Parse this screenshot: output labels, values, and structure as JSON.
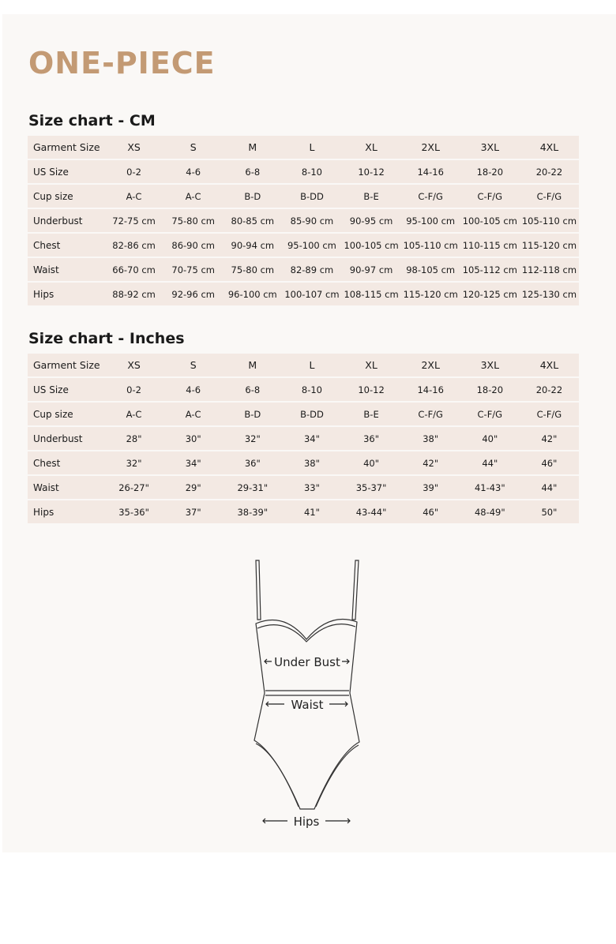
{
  "title": "ONE-PIECE",
  "tables": [
    {
      "heading": "Size chart - CM",
      "header": [
        "Garment Size",
        "XS",
        "S",
        "M",
        "L",
        "XL",
        "2XL",
        "3XL",
        "4XL"
      ],
      "rows": [
        [
          "US Size",
          "0-2",
          "4-6",
          "6-8",
          "8-10",
          "10-12",
          "14-16",
          "18-20",
          "20-22"
        ],
        [
          "Cup size",
          "A-C",
          "A-C",
          "B-D",
          "B-DD",
          "B-E",
          "C-F/G",
          "C-F/G",
          "C-F/G"
        ],
        [
          "Underbust",
          "72-75 cm",
          "75-80 cm",
          "80-85 cm",
          "85-90 cm",
          "90-95 cm",
          "95-100 cm",
          "100-105 cm",
          "105-110 cm"
        ],
        [
          "Chest",
          "82-86 cm",
          "86-90 cm",
          "90-94 cm",
          "95-100 cm",
          "100-105 cm",
          "105-110 cm",
          "110-115 cm",
          "115-120 cm"
        ],
        [
          "Waist",
          "66-70 cm",
          "70-75 cm",
          "75-80 cm",
          "82-89 cm",
          "90-97 cm",
          "98-105 cm",
          "105-112 cm",
          "112-118 cm"
        ],
        [
          "Hips",
          "88-92 cm",
          "92-96 cm",
          "96-100 cm",
          "100-107 cm",
          "108-115 cm",
          "115-120 cm",
          "120-125 cm",
          "125-130 cm"
        ]
      ]
    },
    {
      "heading": "Size chart - Inches",
      "header": [
        "Garment Size",
        "XS",
        "S",
        "M",
        "L",
        "XL",
        "2XL",
        "3XL",
        "4XL"
      ],
      "rows": [
        [
          "US Size",
          "0-2",
          "4-6",
          "6-8",
          "8-10",
          "10-12",
          "14-16",
          "18-20",
          "20-22"
        ],
        [
          "Cup size",
          "A-C",
          "A-C",
          "B-D",
          "B-DD",
          "B-E",
          "C-F/G",
          "C-F/G",
          "C-F/G"
        ],
        [
          "Underbust",
          "28\"",
          "30\"",
          "32\"",
          "34\"",
          "36\"",
          "38\"",
          "40\"",
          "42\""
        ],
        [
          "Chest",
          "32\"",
          "34\"",
          "36\"",
          "38\"",
          "40\"",
          "42\"",
          "44\"",
          "46\""
        ],
        [
          "Waist",
          "26-27\"",
          "29\"",
          "29-31\"",
          "33\"",
          "35-37\"",
          "39\"",
          "41-43\"",
          "44\""
        ],
        [
          "Hips",
          "35-36\"",
          "37\"",
          "38-39\"",
          "41\"",
          "43-44\"",
          "46\"",
          "48-49\"",
          "50\""
        ]
      ]
    }
  ],
  "figure": {
    "under_bust": "Under Bust",
    "waist": "Waist",
    "hips": "Hips"
  },
  "colors": {
    "title": "#c39a74",
    "table_bg": "#f3e9e3",
    "panel_bg": "#faf8f6"
  }
}
